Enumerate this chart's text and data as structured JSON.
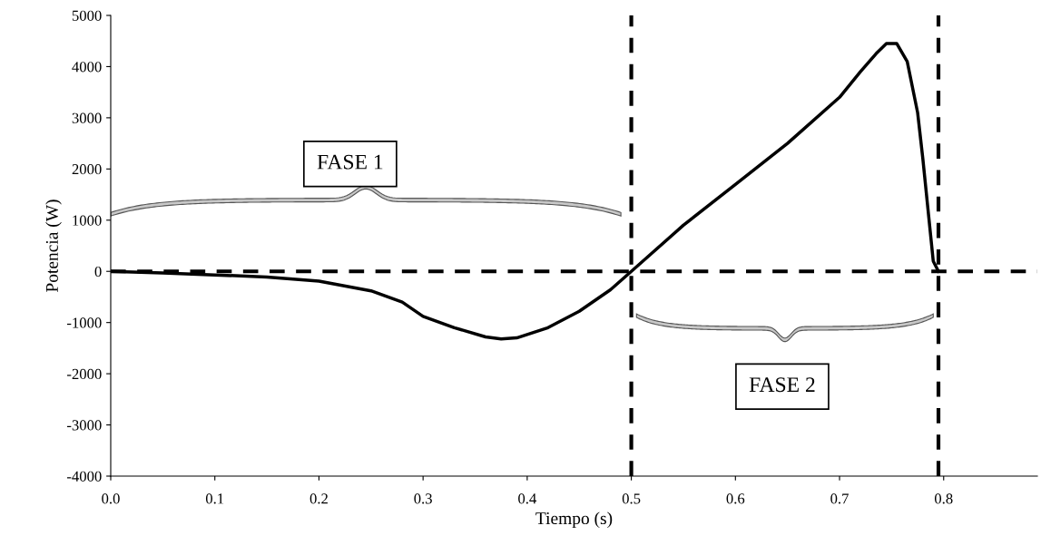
{
  "chart_data": {
    "type": "line",
    "xlabel": "Tiempo (s)",
    "ylabel": "Potencia (W)",
    "xlim": [
      0,
      0.89
    ],
    "ylim": [
      -4000,
      5000
    ],
    "xticks": [
      {
        "value": 0,
        "label": "0.0"
      },
      {
        "value": 0.1,
        "label": "0.1"
      },
      {
        "value": 0.2,
        "label": "0.2"
      },
      {
        "value": 0.3,
        "label": "0.3"
      },
      {
        "value": 0.4,
        "label": "0.4"
      },
      {
        "value": 0.5,
        "label": "0.5"
      },
      {
        "value": 0.6,
        "label": "0.6"
      },
      {
        "value": 0.7,
        "label": "0.7"
      },
      {
        "value": 0.8,
        "label": "0.8"
      }
    ],
    "yticks": [
      -4000,
      -3000,
      -2000,
      -1000,
      0,
      1000,
      2000,
      3000,
      4000,
      5000
    ],
    "grid": false,
    "legend": false,
    "marker": "none",
    "line_style": "solid",
    "x": [
      0,
      0.05,
      0.1,
      0.15,
      0.2,
      0.25,
      0.28,
      0.3,
      0.33,
      0.36,
      0.375,
      0.39,
      0.42,
      0.45,
      0.48,
      0.5,
      0.55,
      0.6,
      0.65,
      0.7,
      0.72,
      0.735,
      0.745,
      0.755,
      0.765,
      0.775,
      0.78,
      0.785,
      0.79,
      0.795
    ],
    "series": [
      {
        "color": "#000000",
        "values": [
          0,
          -30,
          -70,
          -110,
          -190,
          -380,
          -600,
          -880,
          -1100,
          -1280,
          -1320,
          -1300,
          -1100,
          -780,
          -360,
          0,
          900,
          1700,
          2500,
          3400,
          3900,
          4250,
          4450,
          4450,
          4100,
          3100,
          2200,
          1200,
          200,
          0
        ]
      }
    ],
    "ref_lines": [
      {
        "axis": "y",
        "value": 0,
        "color": "#000000",
        "line_style": "dashed"
      },
      {
        "axis": "x",
        "value": 0.5,
        "color": "#000000",
        "line_style": "dashed"
      },
      {
        "axis": "x",
        "value": 0.795,
        "color": "#000000",
        "line_style": "dashed"
      }
    ],
    "annotations": [
      "FASE 1",
      "FASE 2"
    ]
  }
}
